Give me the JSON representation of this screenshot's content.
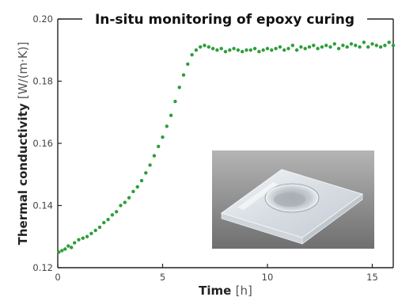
{
  "chart_data": {
    "type": "scatter",
    "title": "In-situ monitoring of epoxy curing",
    "xlabel": "Time",
    "xunit": "[h]",
    "ylabel": "Thermal conductivity",
    "yunit": "[W/(m·K)]",
    "xlim": [
      0,
      16
    ],
    "ylim": [
      0.12,
      0.2
    ],
    "xticks": [
      0,
      5,
      10,
      15
    ],
    "xtick_labels": [
      "0",
      "5",
      "10",
      "15"
    ],
    "yticks": [
      0.12,
      0.14,
      0.16,
      0.18,
      0.2
    ],
    "ytick_labels": [
      "0.12",
      "0.14",
      "0.16",
      "0.18",
      "0.20"
    ],
    "grid": false,
    "legend": "none",
    "marker_color": "#2e9e3a",
    "inset_image": "transparent-square-epoxy-sample-photo",
    "series": [
      {
        "x": [
          0.05,
          0.2,
          0.35,
          0.5,
          0.65,
          0.8,
          1.0,
          1.2,
          1.4,
          1.6,
          1.8,
          2.0,
          2.2,
          2.4,
          2.6,
          2.8,
          3.0,
          3.2,
          3.4,
          3.6,
          3.8,
          4.0,
          4.2,
          4.4,
          4.6,
          4.8,
          5.0,
          5.2,
          5.4,
          5.6,
          5.8,
          6.0,
          6.2,
          6.4,
          6.6,
          6.8,
          7.0,
          7.2,
          7.4,
          7.6,
          7.8,
          8.0,
          8.2,
          8.4,
          8.6,
          8.8,
          9.0,
          9.2,
          9.4,
          9.6,
          9.8,
          10.0,
          10.2,
          10.4,
          10.6,
          10.8,
          11.0,
          11.2,
          11.4,
          11.6,
          11.8,
          12.0,
          12.2,
          12.4,
          12.6,
          12.8,
          13.0,
          13.2,
          13.4,
          13.6,
          13.8,
          14.0,
          14.2,
          14.4,
          14.6,
          14.8,
          15.0,
          15.2,
          15.4,
          15.6,
          15.8,
          16.0
        ],
        "y": [
          0.125,
          0.1255,
          0.126,
          0.127,
          0.1265,
          0.128,
          0.129,
          0.1295,
          0.13,
          0.131,
          0.132,
          0.133,
          0.1345,
          0.1355,
          0.137,
          0.138,
          0.14,
          0.141,
          0.1425,
          0.1445,
          0.146,
          0.148,
          0.1505,
          0.153,
          0.156,
          0.159,
          0.162,
          0.1655,
          0.169,
          0.1735,
          0.178,
          0.182,
          0.1855,
          0.1885,
          0.19,
          0.191,
          0.1915,
          0.191,
          0.1905,
          0.19,
          0.1905,
          0.1895,
          0.19,
          0.1905,
          0.19,
          0.1895,
          0.19,
          0.19,
          0.1905,
          0.1895,
          0.19,
          0.1905,
          0.19,
          0.1905,
          0.191,
          0.19,
          0.1905,
          0.1915,
          0.19,
          0.191,
          0.1905,
          0.191,
          0.1915,
          0.1905,
          0.191,
          0.1915,
          0.191,
          0.192,
          0.1905,
          0.1915,
          0.191,
          0.192,
          0.1915,
          0.191,
          0.1925,
          0.191,
          0.192,
          0.1915,
          0.191,
          0.1915,
          0.1925,
          0.1915
        ]
      }
    ]
  }
}
